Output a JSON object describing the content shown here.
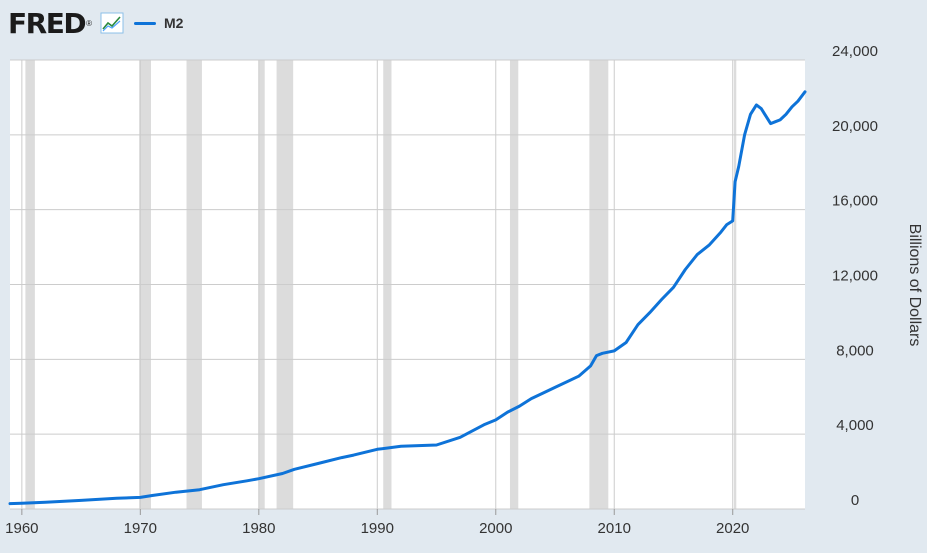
{
  "header": {
    "brand": "FRED",
    "brand_mark": "®",
    "chart_icon": "line-chart-icon",
    "legend_label": "M2"
  },
  "colors": {
    "background": "#e1e9f0",
    "plot_background": "#ffffff",
    "line": "#0e73d8",
    "grid": "#cccccc",
    "recession": "#dcdcdc"
  },
  "chart_data": {
    "type": "line",
    "title": "",
    "xlabel": "",
    "ylabel": "Billions of Dollars",
    "xlim": [
      1959,
      2026.1
    ],
    "ylim": [
      0,
      24000
    ],
    "grid": true,
    "legend_position": "top-left",
    "x_ticks": [
      1960,
      1970,
      1980,
      1990,
      2000,
      2010,
      2020
    ],
    "y_ticks": [
      0,
      4000,
      8000,
      12000,
      16000,
      20000,
      24000
    ],
    "x_tick_labels": [
      "1960",
      "1970",
      "1980",
      "1990",
      "2000",
      "2010",
      "2020"
    ],
    "y_tick_labels": [
      "0",
      "4,000",
      "8,000",
      "12,000",
      "16,000",
      "20,000",
      "24,000"
    ],
    "recessions": [
      [
        1960.3,
        1961.1
      ],
      [
        1969.9,
        1970.9
      ],
      [
        1973.9,
        1975.2
      ],
      [
        1980.0,
        1980.5
      ],
      [
        1981.5,
        1982.9
      ],
      [
        1990.5,
        1991.2
      ],
      [
        2001.2,
        2001.9
      ],
      [
        2007.9,
        2009.5
      ],
      [
        2020.1,
        2020.3
      ]
    ],
    "series": [
      {
        "name": "M2",
        "x": [
          1959,
          1960,
          1962,
          1965,
          1968,
          1970,
          1971,
          1973,
          1975,
          1977,
          1979,
          1980,
          1982,
          1983,
          1985,
          1987,
          1988,
          1990,
          1992,
          1995,
          1997,
          1999,
          2000,
          2001,
          2002,
          2003,
          2004,
          2005,
          2007,
          2008,
          2008.5,
          2009,
          2010,
          2011,
          2012,
          2013,
          2014,
          2015,
          2016,
          2017,
          2018,
          2019,
          2019.5,
          2020.0,
          2020.2,
          2020.5,
          2021,
          2021.5,
          2022.0,
          2022.4,
          2022.8,
          2023.2,
          2023.6,
          2024,
          2024.5,
          2025,
          2025.5,
          2026.1
        ],
        "y": [
          290,
          305,
          360,
          460,
          570,
          620,
          720,
          900,
          1030,
          1300,
          1510,
          1620,
          1900,
          2120,
          2430,
          2750,
          2880,
          3190,
          3350,
          3420,
          3830,
          4500,
          4760,
          5180,
          5500,
          5900,
          6200,
          6500,
          7100,
          7650,
          8200,
          8320,
          8450,
          8900,
          9850,
          10500,
          11200,
          11850,
          12800,
          13600,
          14100,
          14800,
          15200,
          15400,
          17500,
          18300,
          20000,
          21100,
          21600,
          21400,
          21000,
          20600,
          20700,
          20800,
          21100,
          21500,
          21800,
          22300
        ]
      }
    ]
  }
}
